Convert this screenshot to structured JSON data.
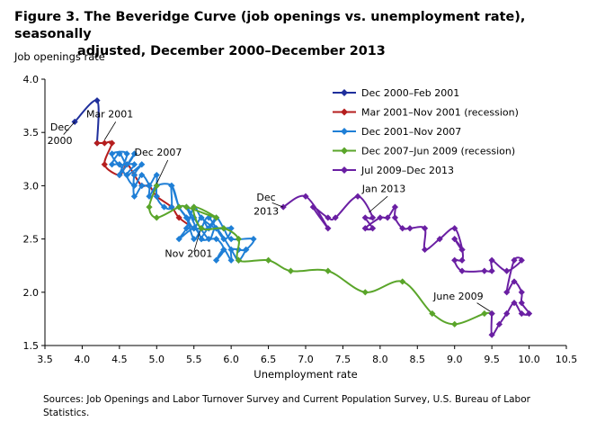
{
  "title_line1": "Figure 3. The Beveridge Curve (job openings vs. unemployment rate), seasonally",
  "title_line2": "adjusted, December 2000–December 2013",
  "ylabel": "Job openings rate",
  "source": "Sources: Job Openings and Labor Turnover Survey and Current Population Survey, U.S. Bureau of Labor Statistics.",
  "chart_data": {
    "type": "line",
    "title": "Figure 3. The Beveridge Curve (job openings vs. unemployment rate), seasonally adjusted, December 2000–December 2013",
    "xlabel": "Unemployment rate",
    "ylabel": "Job openings rate",
    "xlim": [
      3.5,
      10.5
    ],
    "ylim": [
      1.5,
      4.0
    ],
    "x_ticks": [
      "3.5",
      "4.0",
      "4.5",
      "5.0",
      "5.5",
      "6.0",
      "6.5",
      "7.0",
      "7.5",
      "8.0",
      "8.5",
      "9.0",
      "9.5",
      "10.0",
      "10.5"
    ],
    "y_ticks": [
      "1.5",
      "2.0",
      "2.5",
      "3.0",
      "3.5",
      "4.0"
    ],
    "grid": false,
    "legend_position": "top-right",
    "series": [
      {
        "name": "Dec 2000–Feb 2001",
        "color": "#1f2f9c",
        "points": [
          [
            3.9,
            3.6
          ],
          [
            4.2,
            3.8
          ],
          [
            4.2,
            3.4
          ]
        ]
      },
      {
        "name": "Mar 2001–Nov 2001 (recession)",
        "color": "#b51e1e",
        "points": [
          [
            4.2,
            3.4
          ],
          [
            4.3,
            3.4
          ],
          [
            4.4,
            3.4
          ],
          [
            4.3,
            3.2
          ],
          [
            4.5,
            3.1
          ],
          [
            4.6,
            3.2
          ],
          [
            4.7,
            3.1
          ],
          [
            4.8,
            3.0
          ],
          [
            4.9,
            3.0
          ],
          [
            5.0,
            2.9
          ],
          [
            5.2,
            2.8
          ],
          [
            5.3,
            2.7
          ],
          [
            5.5,
            2.6
          ]
        ]
      },
      {
        "name": "Dec 2001–Nov 2007",
        "color": "#1f7fd6",
        "points": [
          [
            5.5,
            2.6
          ],
          [
            5.7,
            2.6
          ],
          [
            5.8,
            2.7
          ],
          [
            5.6,
            2.5
          ],
          [
            5.8,
            2.5
          ],
          [
            5.9,
            2.4
          ],
          [
            5.8,
            2.3
          ],
          [
            5.9,
            2.4
          ],
          [
            6.0,
            2.3
          ],
          [
            6.0,
            2.4
          ],
          [
            6.1,
            2.4
          ],
          [
            6.2,
            2.4
          ],
          [
            6.3,
            2.5
          ],
          [
            6.0,
            2.5
          ],
          [
            5.9,
            2.6
          ],
          [
            5.8,
            2.7
          ],
          [
            5.7,
            2.6
          ],
          [
            5.6,
            2.7
          ],
          [
            5.5,
            2.6
          ],
          [
            5.4,
            2.7
          ],
          [
            5.3,
            2.8
          ],
          [
            5.2,
            3.0
          ],
          [
            5.2,
            2.8
          ],
          [
            5.1,
            2.8
          ],
          [
            5.0,
            2.9
          ],
          [
            5.0,
            3.1
          ],
          [
            4.9,
            3.0
          ],
          [
            4.8,
            3.0
          ],
          [
            4.7,
            2.9
          ],
          [
            4.7,
            3.1
          ],
          [
            4.8,
            3.2
          ],
          [
            4.6,
            3.1
          ],
          [
            4.5,
            3.2
          ],
          [
            4.4,
            3.2
          ],
          [
            4.5,
            3.3
          ],
          [
            4.6,
            3.2
          ],
          [
            4.7,
            3.3
          ],
          [
            4.5,
            3.1
          ],
          [
            4.6,
            3.3
          ],
          [
            4.4,
            3.3
          ],
          [
            4.5,
            3.2
          ],
          [
            4.7,
            3.2
          ],
          [
            4.6,
            3.1
          ],
          [
            4.7,
            3.0
          ],
          [
            4.8,
            3.1
          ],
          [
            4.9,
            3.0
          ],
          [
            4.9,
            2.9
          ],
          [
            5.0,
            3.0
          ],
          [
            5.2,
            3.0
          ],
          [
            5.3,
            2.8
          ],
          [
            5.4,
            2.7
          ],
          [
            5.5,
            2.5
          ],
          [
            5.6,
            2.6
          ],
          [
            5.7,
            2.7
          ],
          [
            5.9,
            2.5
          ],
          [
            6.0,
            2.6
          ],
          [
            5.8,
            2.6
          ],
          [
            5.6,
            2.7
          ],
          [
            5.5,
            2.8
          ],
          [
            5.4,
            2.6
          ],
          [
            5.3,
            2.5
          ],
          [
            5.5,
            2.6
          ],
          [
            5.6,
            2.5
          ],
          [
            5.4,
            2.8
          ],
          [
            5.5,
            2.7
          ],
          [
            5.7,
            2.5
          ],
          [
            5.8,
            2.6
          ],
          [
            6.0,
            2.4
          ],
          [
            6.1,
            2.3
          ],
          [
            6.2,
            2.4
          ]
        ]
      },
      {
        "name": "Dec 2007–Jun 2009 (recession)",
        "color": "#5aa52a",
        "points": [
          [
            5.0,
            3.0
          ],
          [
            4.9,
            2.8
          ],
          [
            5.0,
            2.7
          ],
          [
            5.3,
            2.8
          ],
          [
            5.4,
            2.8
          ],
          [
            5.8,
            2.7
          ],
          [
            5.5,
            2.8
          ],
          [
            5.6,
            2.6
          ],
          [
            5.9,
            2.6
          ],
          [
            6.1,
            2.5
          ],
          [
            6.1,
            2.3
          ],
          [
            6.5,
            2.3
          ],
          [
            6.8,
            2.2
          ],
          [
            7.3,
            2.2
          ],
          [
            7.8,
            2.0
          ],
          [
            8.3,
            2.1
          ],
          [
            8.7,
            1.8
          ],
          [
            9.0,
            1.7
          ],
          [
            9.4,
            1.8
          ],
          [
            9.5,
            1.8
          ]
        ]
      },
      {
        "name": "Jul 2009–Dec 2013",
        "color": "#6a1fa3",
        "points": [
          [
            9.5,
            1.8
          ],
          [
            9.5,
            1.6
          ],
          [
            9.6,
            1.7
          ],
          [
            9.7,
            1.8
          ],
          [
            9.8,
            1.9
          ],
          [
            9.9,
            1.8
          ],
          [
            10.0,
            1.8
          ],
          [
            9.9,
            1.9
          ],
          [
            9.9,
            2.0
          ],
          [
            9.8,
            2.1
          ],
          [
            9.7,
            2.0
          ],
          [
            9.8,
            2.3
          ],
          [
            9.9,
            2.3
          ],
          [
            9.7,
            2.2
          ],
          [
            9.5,
            2.3
          ],
          [
            9.5,
            2.2
          ],
          [
            9.4,
            2.2
          ],
          [
            9.1,
            2.2
          ],
          [
            9.0,
            2.3
          ],
          [
            9.1,
            2.3
          ],
          [
            9.1,
            2.4
          ],
          [
            9.0,
            2.5
          ],
          [
            9.1,
            2.4
          ],
          [
            9.0,
            2.6
          ],
          [
            8.8,
            2.5
          ],
          [
            8.6,
            2.4
          ],
          [
            8.6,
            2.6
          ],
          [
            8.4,
            2.6
          ],
          [
            8.3,
            2.6
          ],
          [
            8.2,
            2.7
          ],
          [
            8.2,
            2.8
          ],
          [
            8.1,
            2.7
          ],
          [
            8.0,
            2.7
          ],
          [
            7.8,
            2.6
          ],
          [
            7.9,
            2.6
          ],
          [
            7.8,
            2.7
          ],
          [
            7.9,
            2.7
          ],
          [
            7.7,
            2.9
          ],
          [
            7.4,
            2.7
          ],
          [
            7.3,
            2.7
          ],
          [
            7.1,
            2.8
          ],
          [
            7.3,
            2.6
          ],
          [
            7.0,
            2.9
          ],
          [
            6.7,
            2.8
          ]
        ]
      }
    ],
    "annotations": [
      {
        "text": "Dec",
        "x": 3.7,
        "y": 3.52
      },
      {
        "text": "2000",
        "x": 3.7,
        "y": 3.39
      },
      {
        "text": "Mar 2001",
        "x": 4.37,
        "y": 3.64
      },
      {
        "text": "Dec 2007",
        "x": 5.02,
        "y": 3.28
      },
      {
        "text": "Nov 2001",
        "x": 5.43,
        "y": 2.33
      },
      {
        "text": "Dec",
        "x": 6.47,
        "y": 2.86
      },
      {
        "text": "2013",
        "x": 6.47,
        "y": 2.73
      },
      {
        "text": "Jan 2013",
        "x": 8.05,
        "y": 2.94
      },
      {
        "text": "June 2009",
        "x": 9.05,
        "y": 1.93
      }
    ]
  }
}
